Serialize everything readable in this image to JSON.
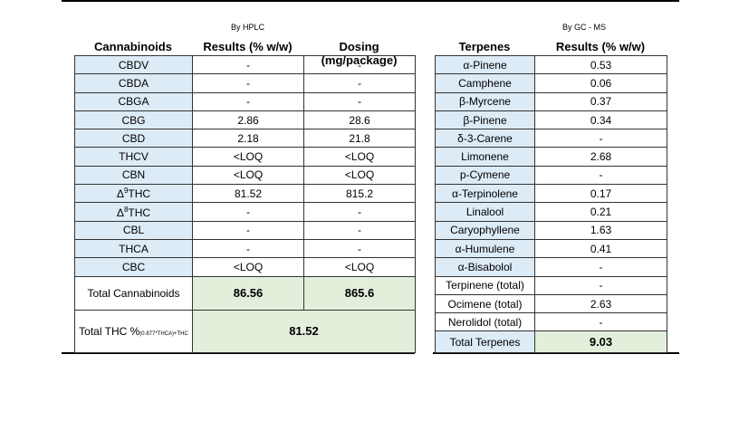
{
  "left": {
    "source": "By HPLC",
    "headers": [
      "Cannabinoids",
      "Results (% w/w)",
      "Dosing (mg/package)"
    ],
    "rows": [
      [
        "CBDV",
        "-",
        "-"
      ],
      [
        "CBDA",
        "-",
        "-"
      ],
      [
        "CBGA",
        "-",
        "-"
      ],
      [
        "CBG",
        "2.86",
        "28.6"
      ],
      [
        "CBD",
        "2.18",
        "21.8"
      ],
      [
        "THCV",
        "<LOQ",
        "<LOQ"
      ],
      [
        "CBN",
        "<LOQ",
        "<LOQ"
      ],
      [
        {
          "base": "Δ",
          "sup": "9",
          "rest": "THC"
        },
        "81.52",
        "815.2"
      ],
      [
        {
          "base": "Δ",
          "sup": "8",
          "rest": "THC"
        },
        "-",
        "-"
      ],
      [
        "CBL",
        "-",
        "-"
      ],
      [
        "THCA",
        "-",
        "-"
      ],
      [
        "CBC",
        "<LOQ",
        "<LOQ"
      ]
    ],
    "total_cannabinoids": {
      "label": "Total Cannabinoids",
      "results": "86.56",
      "dosing": "865.6"
    },
    "total_thc": {
      "label": "Total THC %",
      "subscript": "(0.877*THCA)+THC",
      "value": "81.52"
    }
  },
  "right": {
    "source": "By GC - MS",
    "headers": [
      "Terpenes",
      "Results (% w/w)"
    ],
    "rows": [
      [
        "α-Pinene",
        "0.53"
      ],
      [
        "Camphene",
        "0.06"
      ],
      [
        "β-Myrcene",
        "0.37"
      ],
      [
        "β-Pinene",
        "0.34"
      ],
      [
        "δ-3-Carene",
        "-"
      ],
      [
        "Limonene",
        "2.68"
      ],
      [
        "p-Cymene",
        "-"
      ],
      [
        "α-Terpinolene",
        "0.17"
      ],
      [
        "Linalool",
        "0.21"
      ],
      [
        "Caryophyllene",
        "1.63"
      ],
      [
        "α-Humulene",
        "0.41"
      ],
      [
        "α-Bisabolol",
        "-"
      ],
      [
        "Terpinene (total)",
        "-"
      ],
      [
        "Ocimene (total)",
        "2.63"
      ],
      [
        "Nerolidol (total)",
        "-"
      ]
    ],
    "total_terpenes": {
      "label": "Total Terpenes",
      "value": "9.03"
    }
  }
}
